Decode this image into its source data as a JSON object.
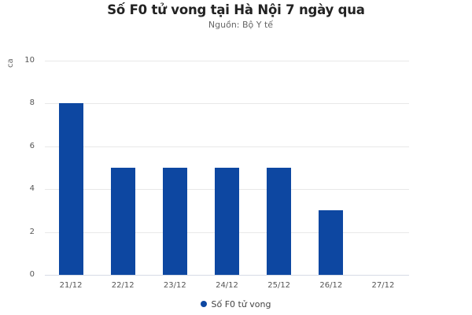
{
  "chart_data": {
    "type": "bar",
    "title": "Số F0 tử vong tại Hà Nội 7 ngày qua",
    "subtitle": "Nguồn: Bộ Y tế",
    "xlabel": "",
    "ylabel": "ca",
    "categories": [
      "21/12",
      "22/12",
      "23/12",
      "24/12",
      "25/12",
      "26/12",
      "27/12"
    ],
    "series": [
      {
        "name": "Số F0 tử vong",
        "values": [
          8,
          5,
          5,
          5,
          5,
          3,
          0
        ],
        "color": "#0d47a1"
      }
    ],
    "ylim": [
      0,
      10
    ],
    "yticks": [
      0,
      2,
      4,
      6,
      8,
      10
    ],
    "grid": true,
    "legend_position": "bottom"
  }
}
